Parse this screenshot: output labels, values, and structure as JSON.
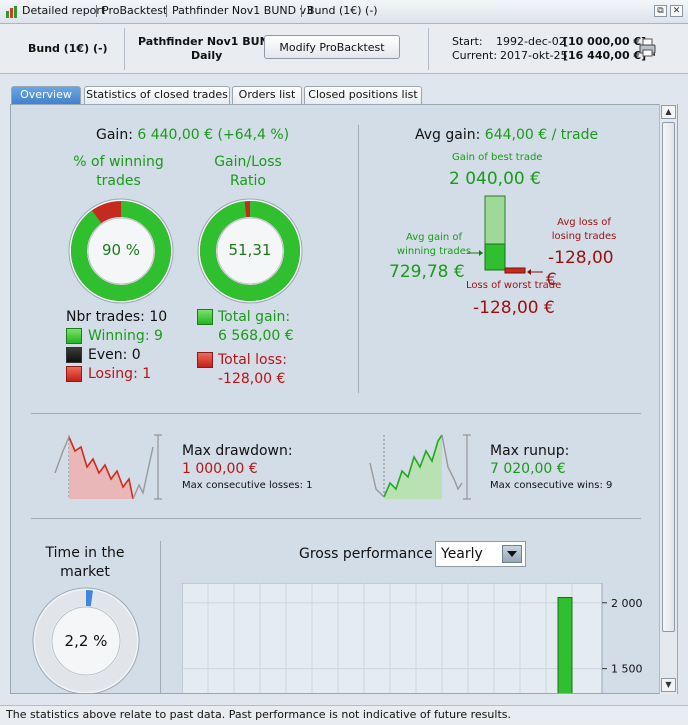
{
  "titlebar": {
    "items": [
      "Detailed report",
      "ProBacktest",
      "Pathfinder Nov1 BUND v3",
      "Bund (1€) (-)"
    ],
    "restore_glyph": "⧉",
    "close_glyph": "✕"
  },
  "header": {
    "instrument": "Bund (1€) (-)",
    "system_name": "Pathfinder Nov1 BUND v3",
    "period": "Daily",
    "modify_button": "Modify ProBacktest",
    "start_label": "Start:",
    "start_date": "1992-dec-02",
    "start_value": "[10 000,00 €]",
    "current_label": "Current:",
    "current_date": "2017-okt-25",
    "current_value": "[16 440,00 €]"
  },
  "tabs": [
    {
      "label": "Overview",
      "active": true
    },
    {
      "label": "Statistics of closed trades",
      "active": false
    },
    {
      "label": "Orders list",
      "active": false
    },
    {
      "label": "Closed positions list",
      "active": false
    }
  ],
  "overview": {
    "gain_label": "Gain:",
    "gain_value": "6 440,00 € (+64,4 %)",
    "winning_title_1": "% of winning",
    "winning_title_2": "trades",
    "winning_pct_text": "90 %",
    "winning_fraction": 0.9,
    "ratio_title_1": "Gain/Loss",
    "ratio_title_2": "Ratio",
    "ratio_text": "51,31",
    "ratio_gain_fraction": 0.981,
    "nbr_trades": "Nbr trades: 10",
    "winning": "Winning: 9",
    "even": "Even: 0",
    "losing": "Losing: 1",
    "total_gain_label": "Total gain:",
    "total_gain_value": "6 568,00 €",
    "total_loss_label": "Total loss:",
    "total_loss_value": "-128,00 €",
    "avg_gain_label": "Avg gain:",
    "avg_gain_value": "644,00 € / trade",
    "best_trade_label": "Gain of best trade",
    "best_trade_value": "2 040,00 €",
    "avg_win_label_1": "Avg gain of",
    "avg_win_label_2": "winning trades",
    "avg_win_value": "729,78 €",
    "avg_loss_label_1": "Avg loss of",
    "avg_loss_label_2": "losing trades",
    "avg_loss_value": "-128,00",
    "avg_loss_unit": "€",
    "worst_trade_label": "Loss of worst trade",
    "worst_trade_value": "-128,00 €",
    "max_drawdown_label": "Max drawdown:",
    "max_drawdown_value": "1 000,00 €",
    "max_consec_losses": "Max consecutive losses: 1",
    "max_runup_label": "Max runup:",
    "max_runup_value": "7 020,00 €",
    "max_consec_wins": "Max consecutive wins: 9",
    "time_market_1": "Time in the",
    "time_market_2": "market",
    "time_market_text": "2,2 %",
    "time_market_fraction": 0.022,
    "gross_perf_label": "Gross performance",
    "period_select": "Yearly"
  },
  "chart_data": {
    "type": "bar",
    "title": "Gross performance",
    "y_ticks": [
      "2 000",
      "1 500"
    ],
    "visible_bars": [
      {
        "value": 2040
      }
    ],
    "ylim": [
      1300,
      2150
    ]
  },
  "footer": {
    "disclaimer": "The statistics above relate to past data. Past performance is not indicative of future results."
  },
  "colors": {
    "win_green": "#22b422",
    "loss_red": "#c4201a",
    "accent_blue": "#3f7fcc"
  }
}
